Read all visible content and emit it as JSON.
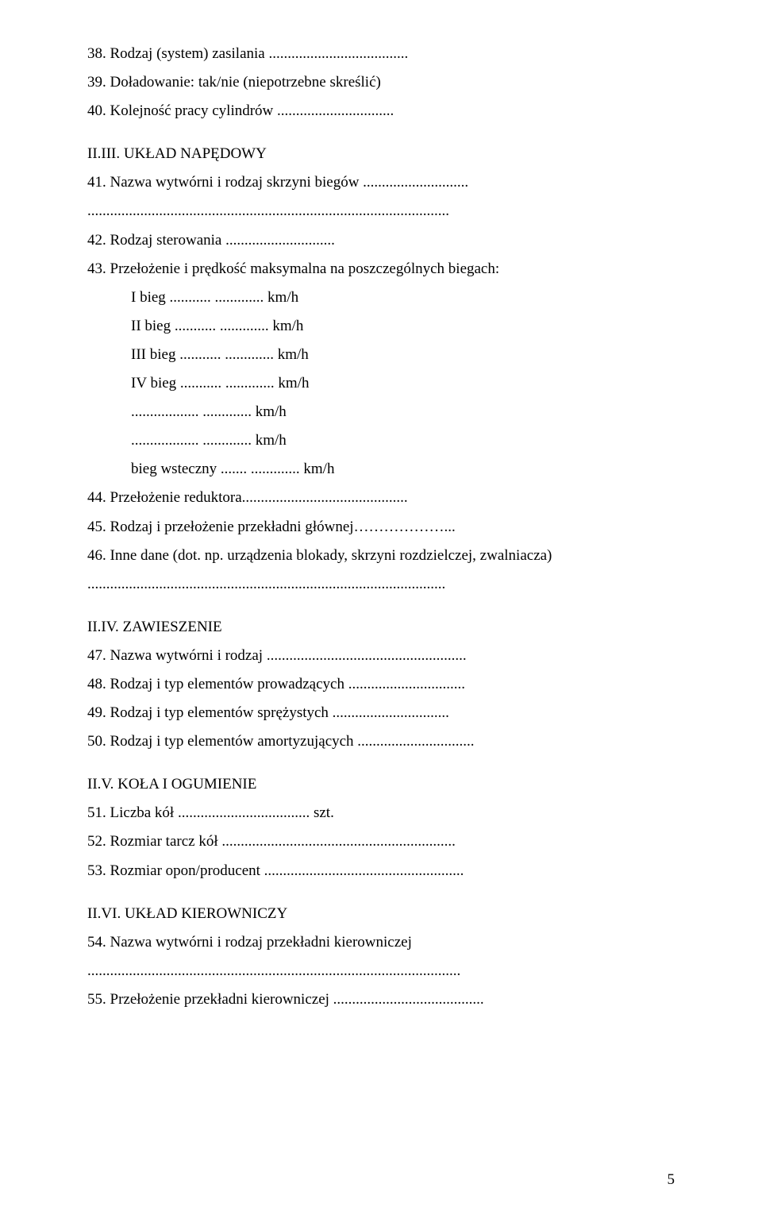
{
  "lines": [
    {
      "text": "38. Rodzaj (system) zasilania .....................................",
      "indent": false
    },
    {
      "text": "39. Doładowanie: tak/nie (niepotrzebne skreślić)",
      "indent": false
    },
    {
      "text": "40. Kolejność pracy cylindrów ...............................",
      "indent": false
    }
  ],
  "sectionA": {
    "title": "II.III. UKŁAD NAPĘDOWY",
    "lines": [
      {
        "text": "41. Nazwa wytwórni i rodzaj skrzyni biegów ............................",
        "indent": false
      },
      {
        "text": "................................................................................................",
        "indent": false
      },
      {
        "text": "42. Rodzaj sterowania .............................",
        "indent": false
      },
      {
        "text": "43. Przełożenie i prędkość maksymalna na poszczególnych biegach:",
        "indent": false
      },
      {
        "text": "I bieg ........... ............. km/h",
        "indent": true
      },
      {
        "text": "II bieg ........... ............. km/h",
        "indent": true
      },
      {
        "text": "III bieg ........... ............. km/h",
        "indent": true
      },
      {
        "text": "IV bieg ........... ............. km/h",
        "indent": true
      },
      {
        "text": ".................. ............. km/h",
        "indent": true
      },
      {
        "text": ".................. ............. km/h",
        "indent": true
      },
      {
        "text": "bieg wsteczny ....... ............. km/h",
        "indent": true
      },
      {
        "text": "44. Przełożenie reduktora............................................",
        "indent": false
      },
      {
        "text": "45. Rodzaj i przełożenie przekładni głównej………………...",
        "indent": false
      },
      {
        "text": "46. Inne dane (dot. np. urządzenia blokady, skrzyni rozdzielczej, zwalniacza)",
        "indent": false
      },
      {
        "text": "...............................................................................................",
        "indent": false
      }
    ]
  },
  "sectionB": {
    "title": "II.IV. ZAWIESZENIE",
    "lines": [
      {
        "text": "47. Nazwa wytwórni i rodzaj .....................................................",
        "indent": false
      },
      {
        "text": "48. Rodzaj i typ elementów prowadzących ...............................",
        "indent": false
      },
      {
        "text": "49. Rodzaj i typ elementów sprężystych ...............................",
        "indent": false
      },
      {
        "text": "50. Rodzaj i typ elementów amortyzujących ...............................",
        "indent": false
      }
    ]
  },
  "sectionC": {
    "title": "II.V. KOŁA I OGUMIENIE",
    "lines": [
      {
        "text": "51. Liczba kół ................................... szt.",
        "indent": false
      },
      {
        "text": "52. Rozmiar tarcz kół ..............................................................",
        "indent": false
      },
      {
        "text": "53. Rozmiar opon/producent .....................................................",
        "indent": false
      }
    ]
  },
  "sectionD": {
    "title": "II.VI. UKŁAD KIEROWNICZY",
    "lines": [
      {
        "text": "54. Nazwa wytwórni i rodzaj przekładni kierowniczej",
        "indent": false
      },
      {
        "text": "...................................................................................................",
        "indent": false
      },
      {
        "text": "55. Przełożenie przekładni kierowniczej ........................................",
        "indent": false
      }
    ]
  },
  "pageNumber": "5",
  "colors": {
    "background": "#ffffff",
    "text": "#000000"
  },
  "typography": {
    "fontFamily": "Times New Roman",
    "fontSizePt": 14,
    "lineHeight": 1.9
  }
}
